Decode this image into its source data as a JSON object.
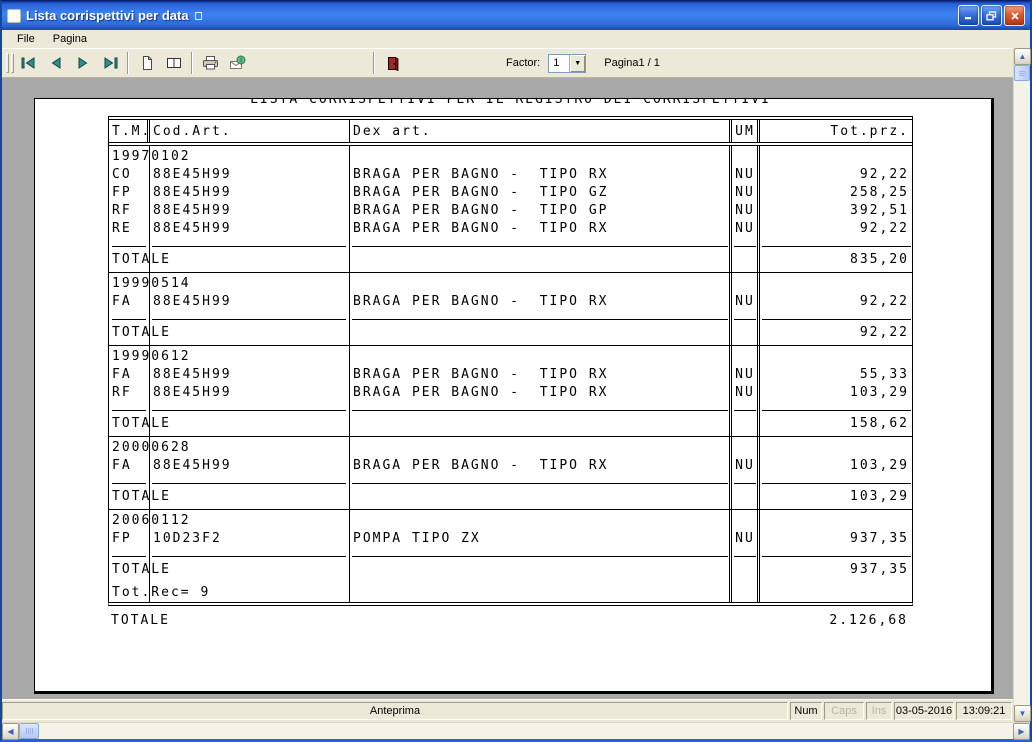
{
  "window": {
    "title": "Lista corrispettivi per data",
    "title_badge": ""
  },
  "menu": {
    "items": [
      {
        "label": "File"
      },
      {
        "label": "Pagina"
      }
    ]
  },
  "toolbar": {
    "factor_label": "Factor:",
    "factor_value": "1",
    "page_indicator": "Pagina1 / 1",
    "buttons": [
      {
        "name": "first-page-button",
        "icon": "first-page-icon"
      },
      {
        "name": "prev-page-button",
        "icon": "prev-page-icon"
      },
      {
        "name": "next-page-button",
        "icon": "next-page-icon"
      },
      {
        "name": "last-page-button",
        "icon": "last-page-icon"
      },
      {
        "name": "single-page-view-button",
        "icon": "page-icon"
      },
      {
        "name": "two-page-view-button",
        "icon": "book-icon"
      },
      {
        "name": "print-button",
        "icon": "printer-icon"
      },
      {
        "name": "export-button",
        "icon": "mail-globe-icon"
      },
      {
        "name": "exit-button",
        "icon": "exit-door-icon"
      }
    ]
  },
  "report": {
    "title": "LISTA CORRISPETTIVI PER IL REGISTRO DEI CORRISPETTIVI",
    "columns": [
      "T.M.",
      "Cod.Art.",
      "Dex art.",
      "UM",
      "Tot.prz."
    ],
    "groups": [
      {
        "date": "19970102",
        "rows": [
          {
            "tm": "CO",
            "cod": "88E45H99",
            "dex": "BRAGA PER BAGNO -  TIPO RX",
            "um": "NU",
            "tot": "92,22"
          },
          {
            "tm": "FP",
            "cod": "88E45H99",
            "dex": "BRAGA PER BAGNO -  TIPO GZ",
            "um": "NU",
            "tot": "258,25"
          },
          {
            "tm": "RF",
            "cod": "88E45H99",
            "dex": "BRAGA PER BAGNO -  TIPO GP",
            "um": "NU",
            "tot": "392,51"
          },
          {
            "tm": "RE",
            "cod": "88E45H99",
            "dex": "BRAGA PER BAGNO -  TIPO RX",
            "um": "NU",
            "tot": "92,22"
          }
        ],
        "total_label": "TOTALE",
        "total": "835,20"
      },
      {
        "date": "19990514",
        "rows": [
          {
            "tm": "FA",
            "cod": "88E45H99",
            "dex": "BRAGA PER BAGNO -  TIPO RX",
            "um": "NU",
            "tot": "92,22"
          }
        ],
        "total_label": "TOTALE",
        "total": "92,22"
      },
      {
        "date": "19990612",
        "rows": [
          {
            "tm": "FA",
            "cod": "88E45H99",
            "dex": "BRAGA PER BAGNO -  TIPO RX",
            "um": "NU",
            "tot": "55,33"
          },
          {
            "tm": "RF",
            "cod": "88E45H99",
            "dex": "BRAGA PER BAGNO -  TIPO RX",
            "um": "NU",
            "tot": "103,29"
          }
        ],
        "total_label": "TOTALE",
        "total": "158,62"
      },
      {
        "date": "20000628",
        "rows": [
          {
            "tm": "FA",
            "cod": "88E45H99",
            "dex": "BRAGA PER BAGNO -  TIPO RX",
            "um": "NU",
            "tot": "103,29"
          }
        ],
        "total_label": "TOTALE",
        "total": "103,29"
      },
      {
        "date": "20060112",
        "rows": [
          {
            "tm": "FP",
            "cod": "10D23F2",
            "dex": "POMPA TIPO ZX",
            "um": "NU",
            "tot": "937,35"
          }
        ],
        "total_label": "TOTALE",
        "total": "937,35",
        "record_count": "Tot.Rec= 9"
      }
    ],
    "grand_total_label": "TOTALE",
    "grand_total": "2.126,68"
  },
  "statusbar": {
    "message": "Anteprima",
    "num": "Num",
    "caps": "Caps",
    "ins": "Ins",
    "date": "03-05-2016",
    "time": "13:09:21"
  },
  "colors": {
    "titlebar_blue": "#2e6bd8",
    "toolbar_bg": "#ece9d8",
    "workspace_gray": "#a8a8a8",
    "nav_arrow_teal": "#2f8f8f",
    "exit_door_red": "#9c2a21",
    "scroll_arrow_blue": "#3b62c4",
    "close_red": "#dc5b32"
  }
}
